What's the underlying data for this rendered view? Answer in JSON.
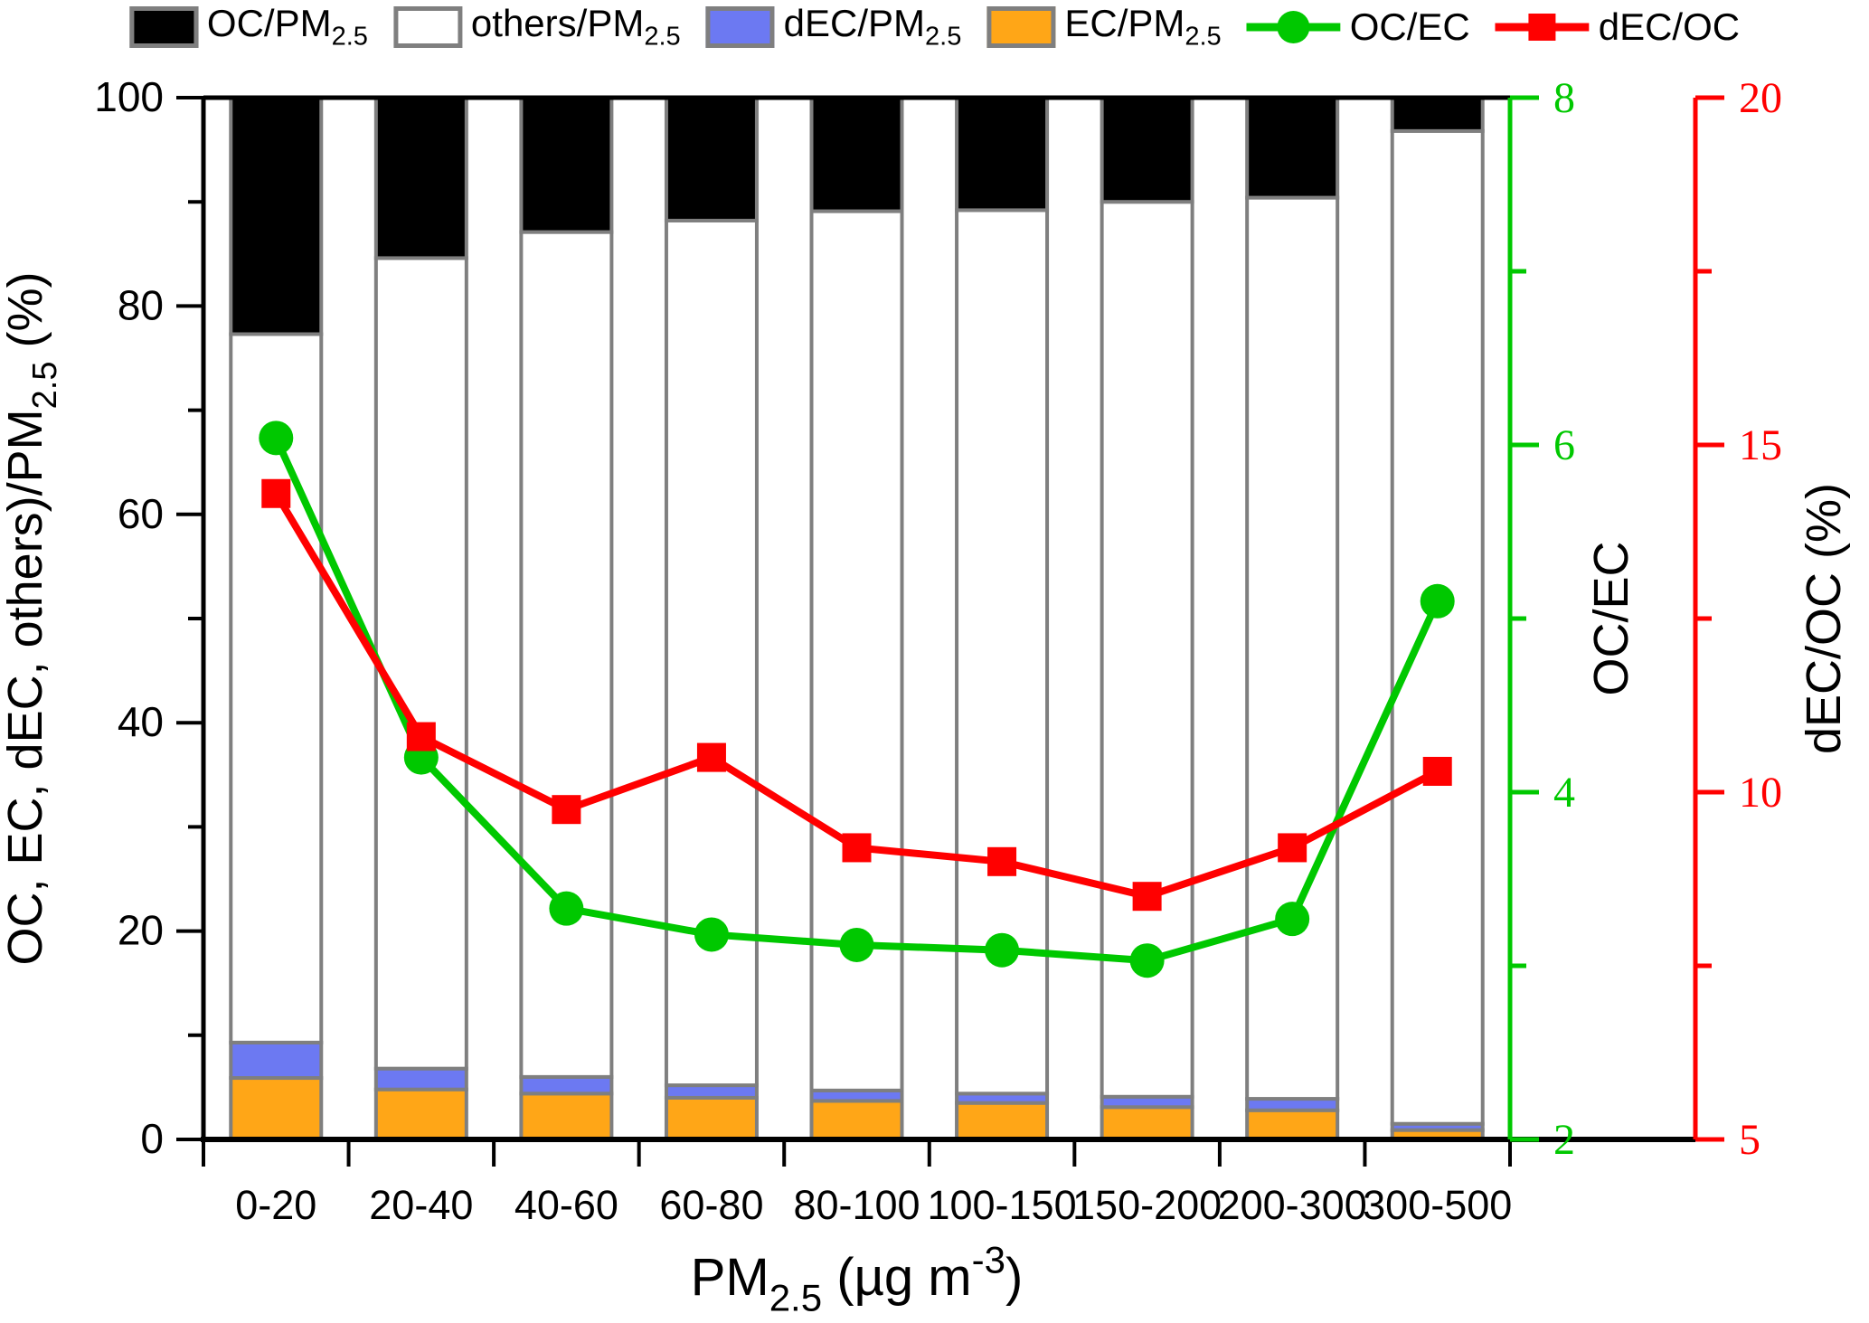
{
  "legend": {
    "items": [
      {
        "type": "box",
        "color": "#000000",
        "label_pre": "OC/PM",
        "label_sub": "2.5"
      },
      {
        "type": "box",
        "color": "#FFFFFF",
        "label_pre": "others/PM",
        "label_sub": "2.5"
      },
      {
        "type": "box",
        "color": "#6C79F2",
        "label_pre": "dEC/PM",
        "label_sub": "2.5"
      },
      {
        "type": "box",
        "color": "#FFA617",
        "label_pre": "EC/PM",
        "label_sub": "2.5"
      },
      {
        "type": "line-circle",
        "color": "#00C800",
        "label_pre": "OC/EC",
        "label_sub": ""
      },
      {
        "type": "line-square",
        "color": "#FF0000",
        "label_pre": "dEC/OC",
        "label_sub": ""
      }
    ]
  },
  "chart_data": {
    "type": "bar+line",
    "subtype": "stacked-percent-bars-with-two-overlay-lines",
    "categories": [
      "0-20",
      "20-40",
      "40-60",
      "60-80",
      "80-100",
      "100-150",
      "150-200",
      "200-300",
      "300-500"
    ],
    "series": [
      {
        "name": "EC/PM2.5",
        "type": "bar",
        "axis": "left",
        "color": "#FFA617",
        "values": [
          5.9,
          4.8,
          4.4,
          4.0,
          3.7,
          3.5,
          3.1,
          2.8,
          0.9
        ]
      },
      {
        "name": "dEC/PM2.5",
        "type": "bar",
        "axis": "left",
        "color": "#6C79F2",
        "values": [
          3.4,
          2.0,
          1.6,
          1.2,
          1.0,
          0.9,
          1.0,
          1.1,
          0.6
        ]
      },
      {
        "name": "others/PM2.5",
        "type": "bar",
        "axis": "left",
        "color": "#FFFFFF",
        "values": [
          68.0,
          77.8,
          81.1,
          83.0,
          84.4,
          84.8,
          85.9,
          86.5,
          95.3
        ]
      },
      {
        "name": "OC/PM2.5",
        "type": "bar",
        "axis": "left",
        "color": "#000000",
        "values": [
          22.7,
          15.4,
          12.9,
          11.8,
          10.9,
          10.8,
          10.0,
          9.6,
          3.2
        ]
      },
      {
        "name": "OC/EC",
        "type": "line",
        "axis": "green",
        "color": "#00C800",
        "marker": "circle",
        "values": [
          6.04,
          4.2,
          3.33,
          3.18,
          3.12,
          3.09,
          3.03,
          3.27,
          5.1
        ]
      },
      {
        "name": "dEC/OC",
        "type": "line",
        "axis": "red",
        "color": "#FF0000",
        "marker": "square",
        "values": [
          14.3,
          10.8,
          9.75,
          10.5,
          9.2,
          9.0,
          8.5,
          9.2,
          10.3
        ]
      }
    ],
    "bar_outline_color": "#7f7f7f",
    "grid": "off",
    "legend_position": "top",
    "axes": {
      "x": {
        "title_parts": [
          {
            "t": "PM"
          },
          {
            "t": "2.5",
            "s": "sub"
          },
          {
            "t": " (µg m"
          },
          {
            "t": "-3",
            "s": "sup"
          },
          {
            "t": ")"
          }
        ],
        "tick_labels": [
          "0-20",
          "20-40",
          "40-60",
          "60-80",
          "80-100",
          "100-150",
          "150-200",
          "200-300",
          "300-500"
        ]
      },
      "left": {
        "title_parts": [
          {
            "t": "OC, EC, dEC, others)/PM"
          },
          {
            "t": "2.5",
            "s": "sub"
          },
          {
            "t": " (%)"
          }
        ],
        "min": 0,
        "max": 100,
        "major": [
          0,
          20,
          40,
          60,
          80,
          100
        ],
        "minor": [
          10,
          30,
          50,
          70,
          90
        ],
        "color": "#000000"
      },
      "green": {
        "title_parts": [
          {
            "t": "OC/EC"
          }
        ],
        "min": 2,
        "max": 8,
        "major": [
          2,
          4,
          6,
          8
        ],
        "minor": [
          3,
          5,
          7
        ],
        "color": "#00C800",
        "title_color": "#000000"
      },
      "red": {
        "title_parts": [
          {
            "t": "dEC/OC (%)"
          }
        ],
        "min": 5,
        "max": 20,
        "major": [
          5,
          10,
          15,
          20
        ],
        "minor": [
          7.5,
          12.5,
          17.5
        ],
        "color": "#FF0000",
        "title_color": "#000000"
      }
    }
  }
}
